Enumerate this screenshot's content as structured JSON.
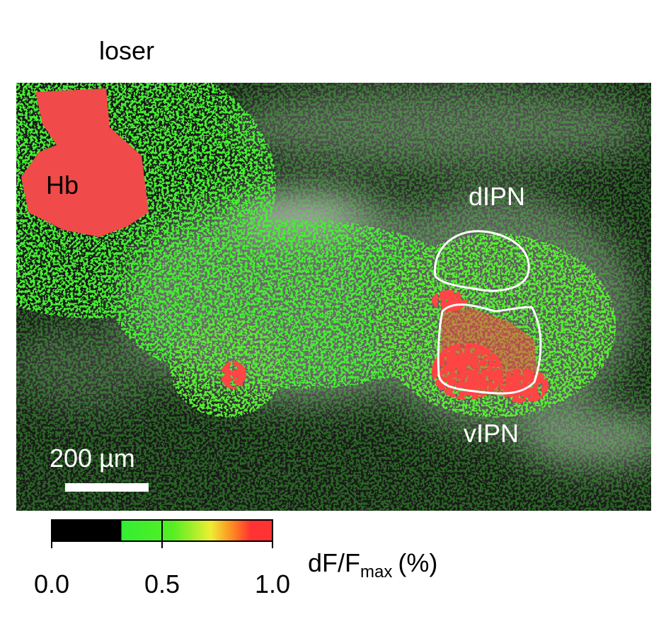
{
  "title": "loser",
  "image": {
    "labels": {
      "hb": "Hb",
      "dipn": "dIPN",
      "vipn": "vIPN"
    },
    "scale_bar": "200 µm"
  },
  "colorbar": {
    "lim": [
      0,
      1
    ],
    "ticks": [
      {
        "value": 0,
        "label": "0.0"
      },
      {
        "value": 0.5,
        "label": "0.5"
      },
      {
        "value": 1,
        "label": "1.0"
      }
    ],
    "label": {
      "main": "dF/F",
      "subscript": "max",
      "unit": "(%)"
    }
  }
}
